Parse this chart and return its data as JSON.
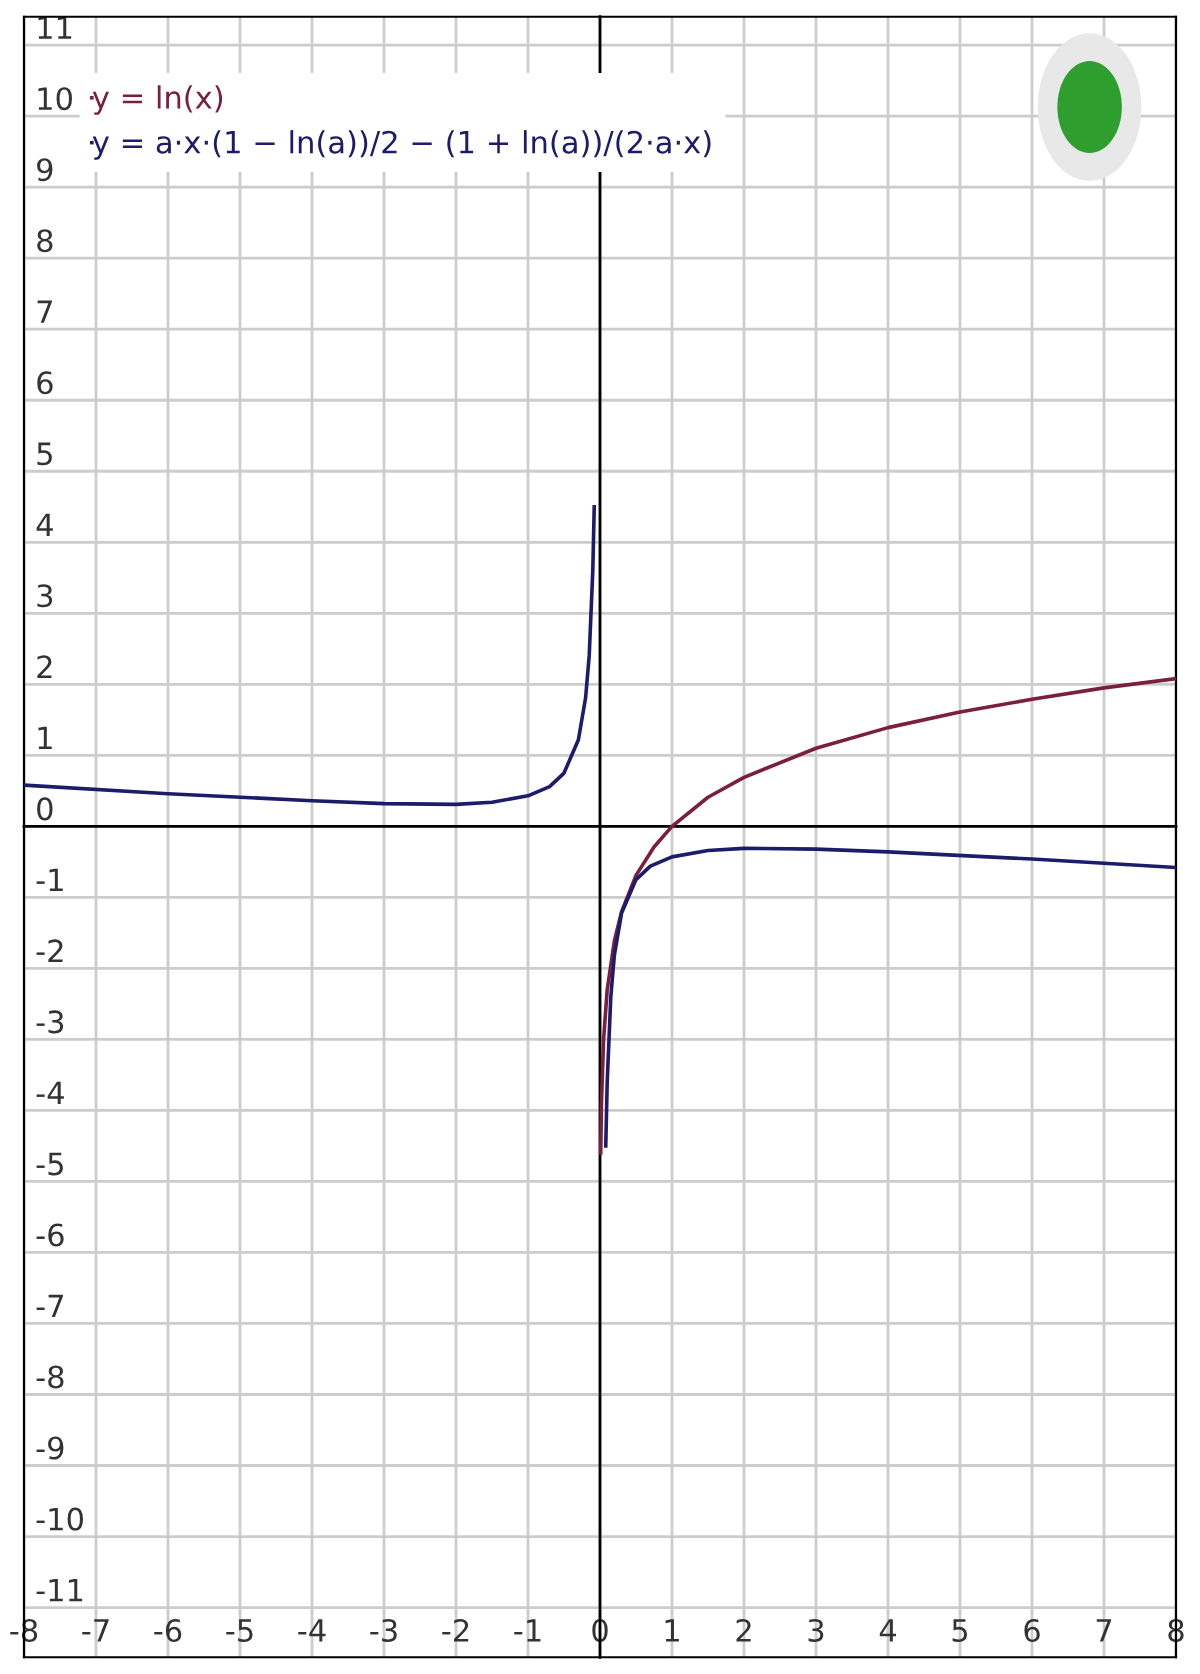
{
  "chart_data": {
    "type": "line",
    "xlim": [
      -8,
      8
    ],
    "ylim": [
      -11.7,
      11.4
    ],
    "xticks": [
      -8,
      -7,
      -6,
      -5,
      -4,
      -3,
      -2,
      -1,
      0,
      1,
      2,
      3,
      4,
      5,
      6,
      7,
      8
    ],
    "yticks": [
      -11,
      -10,
      -9,
      -8,
      -7,
      -6,
      -5,
      -4,
      -3,
      -2,
      -1,
      0,
      1,
      2,
      3,
      4,
      5,
      6,
      7,
      8,
      9,
      10,
      11
    ],
    "grid": true,
    "legend": "top left",
    "marker": "none",
    "line_style": "solid",
    "series": [
      {
        "name": "y = ln(x)",
        "color": "#7a1f3d",
        "x": [
          0.01,
          0.02,
          0.05,
          0.1,
          0.2,
          0.3,
          0.5,
          0.75,
          1,
          1.5,
          2,
          3,
          4,
          5,
          6,
          7,
          8
        ],
        "values": [
          -4.6,
          -3.91,
          -3.0,
          -2.3,
          -1.61,
          -1.2,
          -0.69,
          -0.29,
          0,
          0.41,
          0.69,
          1.1,
          1.39,
          1.61,
          1.79,
          1.95,
          2.08
        ]
      },
      {
        "name": "y = a·x·(1 − ln(a))/2 − (1 + ln(a))/(2·a·x)",
        "color": "#1c1c6b",
        "x": [
          -8,
          -6,
          -4,
          -3,
          -2,
          -1.5,
          -1,
          -0.7,
          -0.5,
          -0.3,
          -0.2,
          -0.15,
          -0.1,
          -0.08,
          0,
          0.08,
          0.1,
          0.15,
          0.2,
          0.3,
          0.5,
          0.7,
          1,
          1.5,
          2,
          3,
          4,
          6,
          8
        ],
        "values": [
          0.58,
          0.46,
          0.36,
          0.32,
          0.31,
          0.34,
          0.43,
          0.56,
          0.75,
          1.22,
          1.81,
          2.4,
          3.6,
          4.5,
          null,
          -4.5,
          -3.6,
          -2.4,
          -1.81,
          -1.22,
          -0.75,
          -0.56,
          -0.43,
          -0.34,
          -0.31,
          -0.32,
          -0.36,
          -0.46,
          -0.58
        ]
      }
    ]
  }
}
